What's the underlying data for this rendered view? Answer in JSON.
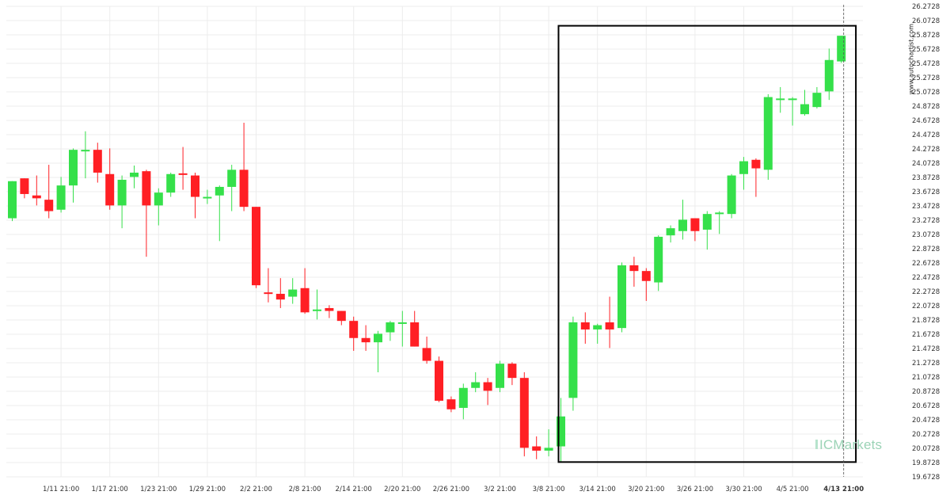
{
  "watermark": "www.autochartist.com",
  "brand": "ICMarkets",
  "chart_data": {
    "type": "candlestick",
    "title": "",
    "xlabel": "",
    "ylabel": "",
    "ylim": [
      19.6728,
      26.2728
    ],
    "y_ticks": [
      "26.2728",
      "26.0728",
      "25.8728",
      "25.6728",
      "25.4728",
      "25.2728",
      "25.0728",
      "24.8728",
      "24.6728",
      "24.4728",
      "24.2728",
      "24.0728",
      "23.8728",
      "23.6728",
      "23.4728",
      "23.2728",
      "23.0728",
      "22.8728",
      "22.6728",
      "22.4728",
      "22.2728",
      "22.0728",
      "21.8728",
      "21.6728",
      "21.4728",
      "21.2728",
      "21.0728",
      "20.8728",
      "20.6728",
      "20.4728",
      "20.2728",
      "20.0728",
      "19.8728",
      "19.6728"
    ],
    "x_ticks": [
      {
        "label": "1/11 21:00",
        "index": 4
      },
      {
        "label": "1/17 21:00",
        "index": 8
      },
      {
        "label": "1/23 21:00",
        "index": 12
      },
      {
        "label": "1/29 21:00",
        "index": 16
      },
      {
        "label": "2/2 21:00",
        "index": 20
      },
      {
        "label": "2/8 21:00",
        "index": 24
      },
      {
        "label": "2/14 21:00",
        "index": 28
      },
      {
        "label": "2/20 21:00",
        "index": 32
      },
      {
        "label": "2/26 21:00",
        "index": 36
      },
      {
        "label": "3/2 21:00",
        "index": 40
      },
      {
        "label": "3/8 21:00",
        "index": 44
      },
      {
        "label": "3/14 21:00",
        "index": 48
      },
      {
        "label": "3/20 21:00",
        "index": 52
      },
      {
        "label": "3/26 21:00",
        "index": 56
      },
      {
        "label": "3/30 21:00",
        "index": 60
      },
      {
        "label": "4/5 21:00",
        "index": 64
      },
      {
        "label": "4/13 21:00",
        "index": 68,
        "bold": true
      }
    ],
    "up_color": "#35e04a",
    "down_color": "#ff1f24",
    "highlight_box": {
      "start_index": 45,
      "end_index": 69,
      "top": 26.0,
      "bottom": 19.88
    },
    "candles": [
      {
        "o": 23.3,
        "h": 23.82,
        "l": 23.26,
        "c": 23.82
      },
      {
        "o": 23.86,
        "h": 23.86,
        "l": 23.58,
        "c": 23.64
      },
      {
        "o": 23.62,
        "h": 23.9,
        "l": 23.48,
        "c": 23.58
      },
      {
        "o": 23.56,
        "h": 24.05,
        "l": 23.3,
        "c": 23.4
      },
      {
        "o": 23.42,
        "h": 23.88,
        "l": 23.38,
        "c": 23.76
      },
      {
        "o": 23.76,
        "h": 24.28,
        "l": 23.52,
        "c": 24.26
      },
      {
        "o": 24.26,
        "h": 24.52,
        "l": 23.86,
        "c": 24.26
      },
      {
        "o": 24.26,
        "h": 24.36,
        "l": 23.8,
        "c": 23.94
      },
      {
        "o": 23.92,
        "h": 24.28,
        "l": 23.42,
        "c": 23.48
      },
      {
        "o": 23.48,
        "h": 23.9,
        "l": 23.16,
        "c": 23.84
      },
      {
        "o": 23.88,
        "h": 24.04,
        "l": 23.72,
        "c": 23.94
      },
      {
        "o": 23.96,
        "h": 23.98,
        "l": 22.76,
        "c": 23.48
      },
      {
        "o": 23.48,
        "h": 23.72,
        "l": 23.2,
        "c": 23.66
      },
      {
        "o": 23.66,
        "h": 23.94,
        "l": 23.6,
        "c": 23.92
      },
      {
        "o": 23.93,
        "h": 24.3,
        "l": 23.7,
        "c": 23.92
      },
      {
        "o": 23.9,
        "h": 23.94,
        "l": 23.3,
        "c": 23.6
      },
      {
        "o": 23.6,
        "h": 23.7,
        "l": 23.5,
        "c": 23.6
      },
      {
        "o": 23.62,
        "h": 23.76,
        "l": 22.98,
        "c": 23.74
      },
      {
        "o": 23.74,
        "h": 24.05,
        "l": 23.4,
        "c": 23.98
      },
      {
        "o": 23.98,
        "h": 24.64,
        "l": 23.4,
        "c": 23.46
      },
      {
        "o": 23.46,
        "h": 23.46,
        "l": 22.32,
        "c": 22.36
      },
      {
        "o": 22.26,
        "h": 22.6,
        "l": 22.12,
        "c": 22.24
      },
      {
        "o": 22.24,
        "h": 22.46,
        "l": 22.04,
        "c": 22.16
      },
      {
        "o": 22.2,
        "h": 22.46,
        "l": 22.1,
        "c": 22.3
      },
      {
        "o": 22.32,
        "h": 22.6,
        "l": 21.96,
        "c": 21.98
      },
      {
        "o": 22.0,
        "h": 22.3,
        "l": 21.88,
        "c": 22.02
      },
      {
        "o": 22.04,
        "h": 22.08,
        "l": 21.9,
        "c": 22.0
      },
      {
        "o": 22.0,
        "h": 22.0,
        "l": 21.8,
        "c": 21.86
      },
      {
        "o": 21.86,
        "h": 21.92,
        "l": 21.44,
        "c": 21.62
      },
      {
        "o": 21.62,
        "h": 21.8,
        "l": 21.44,
        "c": 21.56
      },
      {
        "o": 21.56,
        "h": 21.72,
        "l": 21.14,
        "c": 21.68
      },
      {
        "o": 21.7,
        "h": 21.86,
        "l": 21.58,
        "c": 21.84
      },
      {
        "o": 21.84,
        "h": 22.0,
        "l": 21.5,
        "c": 21.84
      },
      {
        "o": 21.84,
        "h": 22.0,
        "l": 21.5,
        "c": 21.5
      },
      {
        "o": 21.48,
        "h": 21.64,
        "l": 21.26,
        "c": 21.3
      },
      {
        "o": 21.3,
        "h": 21.36,
        "l": 20.72,
        "c": 20.74
      },
      {
        "o": 20.76,
        "h": 20.8,
        "l": 20.58,
        "c": 20.62
      },
      {
        "o": 20.64,
        "h": 20.98,
        "l": 20.48,
        "c": 20.92
      },
      {
        "o": 20.92,
        "h": 21.14,
        "l": 20.86,
        "c": 21.0
      },
      {
        "o": 21.0,
        "h": 21.06,
        "l": 20.68,
        "c": 20.88
      },
      {
        "o": 20.92,
        "h": 21.3,
        "l": 20.86,
        "c": 21.26
      },
      {
        "o": 21.26,
        "h": 21.28,
        "l": 20.96,
        "c": 21.06
      },
      {
        "o": 21.06,
        "h": 21.14,
        "l": 19.96,
        "c": 20.08
      },
      {
        "o": 20.1,
        "h": 20.24,
        "l": 19.92,
        "c": 20.04
      },
      {
        "o": 20.04,
        "h": 20.34,
        "l": 19.96,
        "c": 20.08
      },
      {
        "o": 20.1,
        "h": 20.78,
        "l": 19.88,
        "c": 20.52
      },
      {
        "o": 20.78,
        "h": 21.92,
        "l": 20.6,
        "c": 21.84
      },
      {
        "o": 21.84,
        "h": 21.98,
        "l": 21.54,
        "c": 21.74
      },
      {
        "o": 21.74,
        "h": 21.82,
        "l": 21.54,
        "c": 21.8
      },
      {
        "o": 21.84,
        "h": 22.2,
        "l": 21.48,
        "c": 21.74
      },
      {
        "o": 21.76,
        "h": 22.68,
        "l": 21.7,
        "c": 22.64
      },
      {
        "o": 22.64,
        "h": 22.76,
        "l": 22.34,
        "c": 22.56
      },
      {
        "o": 22.56,
        "h": 22.6,
        "l": 22.14,
        "c": 22.42
      },
      {
        "o": 22.4,
        "h": 23.06,
        "l": 22.28,
        "c": 23.04
      },
      {
        "o": 23.06,
        "h": 23.2,
        "l": 22.96,
        "c": 23.16
      },
      {
        "o": 23.12,
        "h": 23.56,
        "l": 23.0,
        "c": 23.28
      },
      {
        "o": 23.3,
        "h": 23.3,
        "l": 22.98,
        "c": 23.12
      },
      {
        "o": 23.14,
        "h": 23.4,
        "l": 22.86,
        "c": 23.36
      },
      {
        "o": 23.38,
        "h": 23.4,
        "l": 23.08,
        "c": 23.38
      },
      {
        "o": 23.36,
        "h": 23.92,
        "l": 23.3,
        "c": 23.9
      },
      {
        "o": 23.92,
        "h": 24.16,
        "l": 23.7,
        "c": 24.1
      },
      {
        "o": 24.12,
        "h": 24.14,
        "l": 23.6,
        "c": 24.0
      },
      {
        "o": 23.98,
        "h": 25.04,
        "l": 23.84,
        "c": 25.0
      },
      {
        "o": 24.98,
        "h": 25.14,
        "l": 24.78,
        "c": 24.98
      },
      {
        "o": 24.96,
        "h": 25.0,
        "l": 24.6,
        "c": 24.98
      },
      {
        "o": 24.76,
        "h": 25.1,
        "l": 24.74,
        "c": 24.9
      },
      {
        "o": 24.86,
        "h": 25.14,
        "l": 24.84,
        "c": 25.06
      },
      {
        "o": 25.08,
        "h": 25.68,
        "l": 24.96,
        "c": 25.52
      },
      {
        "o": 25.5,
        "h": 25.86,
        "l": 25.48,
        "c": 25.86
      }
    ]
  }
}
